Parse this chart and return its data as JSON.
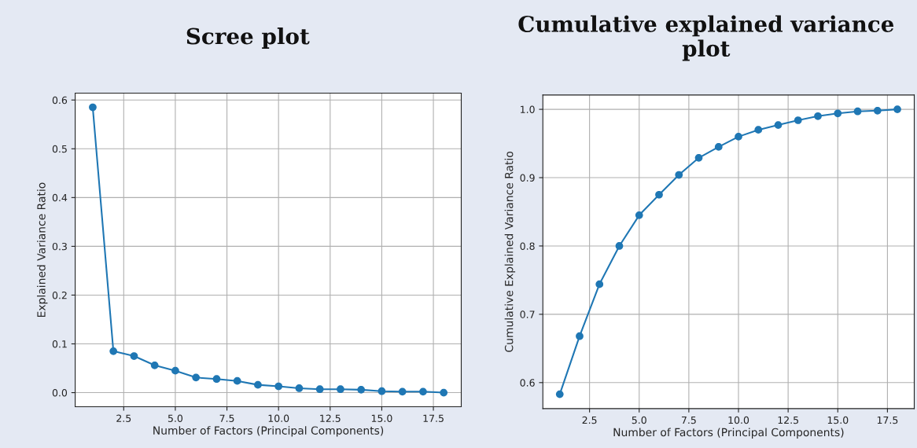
{
  "chart_data": [
    {
      "type": "line",
      "title": "Scree plot",
      "xlabel": "Number of Factors (Principal Components)",
      "ylabel": "Explained Variance Ratio",
      "x": [
        1,
        2,
        3,
        4,
        5,
        6,
        7,
        8,
        9,
        10,
        11,
        12,
        13,
        14,
        15,
        16,
        17,
        18
      ],
      "series": [
        {
          "color": "#1f77b4",
          "values": [
            0.585,
            0.085,
            0.075,
            0.056,
            0.045,
            0.031,
            0.028,
            0.024,
            0.016,
            0.013,
            0.009,
            0.007,
            0.007,
            0.006,
            0.003,
            0.002,
            0.002,
            0.0
          ]
        }
      ],
      "xlim": [
        0.15,
        18.85
      ],
      "xticks": [
        {
          "value": 2.5,
          "label": "2.5"
        },
        {
          "value": 5,
          "label": "5.0"
        },
        {
          "value": 7.5,
          "label": "7.5"
        },
        {
          "value": 10,
          "label": "10.0"
        },
        {
          "value": 12.5,
          "label": "12.5"
        },
        {
          "value": 15,
          "label": "15.0"
        },
        {
          "value": 17.5,
          "label": "17.5"
        }
      ],
      "ylim": [
        -0.029,
        0.614
      ],
      "yticks": [
        {
          "value": 0,
          "label": "0.0"
        },
        0.1,
        0.2,
        0.3,
        0.4,
        0.5,
        0.6
      ],
      "grid": true,
      "marker": "circle",
      "line_style": "solid"
    },
    {
      "type": "line",
      "title": "Cumulative explained variance plot",
      "xlabel": "Number of Factors (Principal Components)",
      "ylabel": "Cumulative Explained Variance Ratio",
      "x": [
        1,
        2,
        3,
        4,
        5,
        6,
        7,
        8,
        9,
        10,
        11,
        12,
        13,
        14,
        15,
        16,
        17,
        18
      ],
      "series": [
        {
          "color": "#1f77b4",
          "values": [
            0.583,
            0.668,
            0.744,
            0.8,
            0.845,
            0.875,
            0.904,
            0.929,
            0.945,
            0.96,
            0.97,
            0.977,
            0.984,
            0.99,
            0.994,
            0.997,
            0.998,
            1.0
          ]
        }
      ],
      "xlim": [
        0.15,
        18.85
      ],
      "xticks": [
        {
          "value": 2.5,
          "label": "2.5"
        },
        {
          "value": 5,
          "label": "5.0"
        },
        {
          "value": 7.5,
          "label": "7.5"
        },
        {
          "value": 10,
          "label": "10.0"
        },
        {
          "value": 12.5,
          "label": "12.5"
        },
        {
          "value": 15,
          "label": "15.0"
        },
        {
          "value": 17.5,
          "label": "17.5"
        }
      ],
      "ylim": [
        0.562,
        1.021
      ],
      "yticks": [
        0.6,
        0.7,
        0.8,
        0.9,
        {
          "value": 1.0,
          "label": "1.0"
        }
      ],
      "grid": true,
      "marker": "circle",
      "line_style": "solid"
    }
  ]
}
